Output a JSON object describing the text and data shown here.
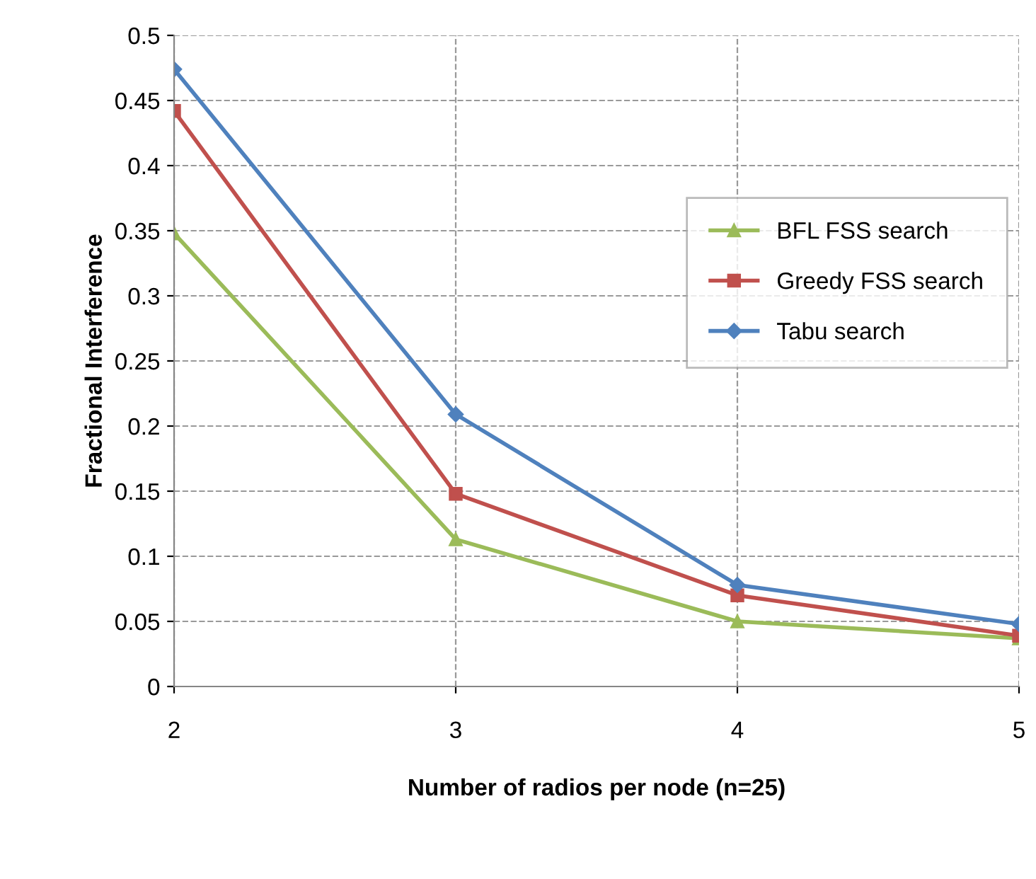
{
  "chart_data": {
    "type": "line",
    "xlabel": "Number of radios per node (n=25)",
    "ylabel": "Fractional Interference",
    "x": [
      2,
      3,
      4,
      5
    ],
    "series": [
      {
        "name": "BFL FSS search",
        "color": "#9bbb59",
        "marker": "triangle",
        "values": [
          0.348,
          0.113,
          0.05,
          0.037
        ]
      },
      {
        "name": "Greedy FSS search",
        "color": "#c0504d",
        "marker": "square",
        "values": [
          0.442,
          0.148,
          0.07,
          0.039
        ]
      },
      {
        "name": "Tabu search",
        "color": "#4f81bd",
        "marker": "diamond",
        "values": [
          0.474,
          0.209,
          0.078,
          0.048
        ]
      }
    ],
    "xlim": [
      2,
      5
    ],
    "xticks": [
      2,
      3,
      4,
      5
    ],
    "ylim": [
      0,
      0.5
    ],
    "yticks": [
      0,
      0.05,
      0.1,
      0.15,
      0.2,
      0.25,
      0.3,
      0.35,
      0.4,
      0.45,
      0.5
    ],
    "grid": true,
    "legend": "right",
    "line_style": "solid"
  }
}
